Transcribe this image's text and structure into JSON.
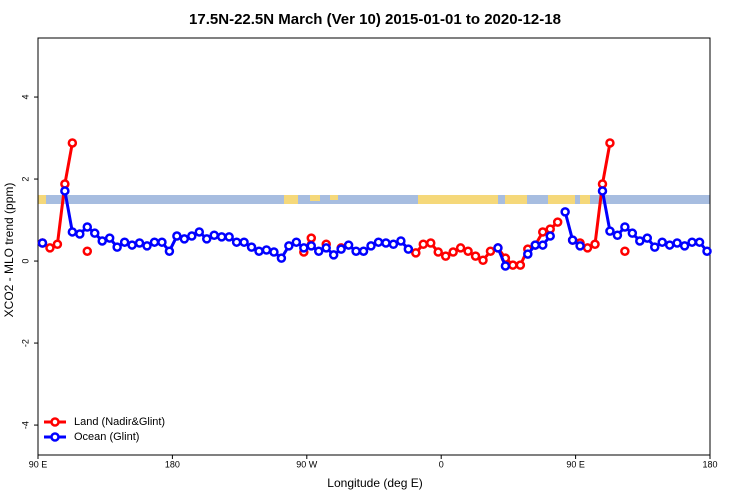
{
  "chart_data": {
    "type": "line",
    "title": "17.5N-22.5N March (Ver 10)   2015-01-01 to 2020-12-18",
    "x_label": "Longitude (deg E)",
    "y_label": "XCO2 - MLO trend (ppm)",
    "x": [
      93,
      98,
      103,
      108,
      113,
      118,
      123,
      128,
      133,
      138,
      143,
      148,
      153,
      158,
      163,
      168,
      173,
      178,
      183,
      188,
      193,
      198,
      203,
      208,
      213,
      218,
      223,
      228,
      233,
      238,
      243,
      248,
      253,
      258,
      263,
      268,
      273,
      278,
      283,
      288,
      293,
      298,
      303,
      308,
      313,
      318,
      323,
      328,
      333,
      338,
      343,
      348,
      353,
      358,
      363,
      368,
      373,
      378,
      383,
      388,
      393,
      398,
      403,
      408,
      413,
      418,
      423,
      428,
      433,
      438,
      443,
      448,
      453,
      458,
      463,
      468,
      473,
      478,
      483,
      488,
      493,
      498,
      503,
      508,
      513,
      518,
      523,
      528,
      533,
      538
    ],
    "series": [
      {
        "name": "Land (Nadir&Glint)",
        "color": "#ff0000",
        "values": [
          0.44,
          0.32,
          0.41,
          1.88,
          2.88,
          null,
          0.24,
          null,
          null,
          null,
          null,
          null,
          null,
          null,
          null,
          null,
          null,
          null,
          null,
          null,
          null,
          null,
          null,
          null,
          null,
          null,
          null,
          null,
          null,
          null,
          null,
          null,
          null,
          null,
          null,
          0.22,
          0.56,
          null,
          0.41,
          null,
          0.32,
          null,
          null,
          null,
          null,
          null,
          null,
          null,
          null,
          null,
          0.2,
          0.41,
          0.44,
          0.22,
          0.12,
          0.22,
          0.32,
          0.24,
          0.12,
          0.02,
          0.24,
          0.32,
          0.07,
          -0.1,
          -0.1,
          0.29,
          0.39,
          0.71,
          0.78,
          0.95,
          null,
          0.51,
          0.44,
          0.32,
          0.41,
          1.88,
          2.88,
          null,
          0.24,
          null,
          null,
          null,
          null,
          null,
          null,
          null,
          null,
          null,
          null,
          null
        ]
      },
      {
        "name": "Ocean (Glint)",
        "color": "#0000ff",
        "values": [
          0.44,
          null,
          null,
          1.71,
          0.71,
          0.66,
          0.83,
          0.68,
          0.49,
          0.56,
          0.34,
          0.46,
          0.39,
          0.44,
          0.37,
          0.46,
          0.46,
          0.24,
          0.61,
          0.54,
          0.61,
          0.71,
          0.54,
          0.63,
          0.59,
          0.59,
          0.46,
          0.46,
          0.34,
          0.24,
          0.27,
          0.22,
          0.07,
          0.37,
          0.46,
          0.32,
          0.37,
          0.24,
          0.32,
          0.15,
          0.29,
          0.39,
          0.24,
          0.24,
          0.37,
          0.46,
          0.44,
          0.41,
          0.49,
          0.29,
          null,
          null,
          null,
          null,
          null,
          null,
          null,
          null,
          null,
          null,
          null,
          0.32,
          -0.12,
          null,
          null,
          0.17,
          0.39,
          0.39,
          0.61,
          null,
          1.2,
          0.51,
          0.37,
          null,
          null,
          1.71,
          0.73,
          0.63,
          0.83,
          0.68,
          0.49,
          0.56,
          0.34,
          0.46,
          0.39,
          0.44,
          0.37,
          0.46,
          0.46,
          0.24
        ]
      }
    ],
    "xlim": [
      90,
      540
    ],
    "xticks": [
      {
        "value": 90,
        "label": "90 E"
      },
      {
        "value": 180,
        "label": "180"
      },
      {
        "value": 270,
        "label": "90 W"
      },
      {
        "value": 360,
        "label": "0"
      },
      {
        "value": 450,
        "label": "90 E"
      },
      {
        "value": 540,
        "label": "180"
      }
    ],
    "ylim": [
      -4.73,
      5.44
    ],
    "yticks": [
      -4,
      -2,
      0,
      2,
      4
    ],
    "legend": "bottom-left",
    "grid": false
  }
}
